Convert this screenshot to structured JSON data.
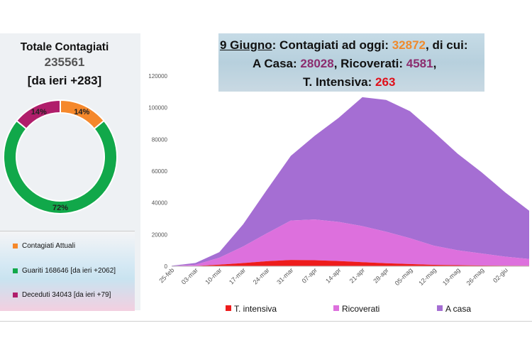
{
  "summary": {
    "title": "Totale Contagiati",
    "total": "235561",
    "delta": "[da ieri +283]"
  },
  "donut": {
    "slices": [
      {
        "label": "14%",
        "value": 14,
        "color": "#f5882b"
      },
      {
        "label": "72%",
        "value": 72,
        "color": "#11a84a"
      },
      {
        "label": "14%",
        "value": 14,
        "color": "#b01e6b"
      }
    ]
  },
  "donut_legend": [
    {
      "label": "Contagiati Attuali",
      "color": "#f5882b"
    },
    {
      "label": "Guariti 168646 [da ieri +2062]",
      "color": "#11a84a"
    },
    {
      "label": "Deceduti 34043 [da ieri +79]",
      "color": "#b01e6b"
    }
  ],
  "header": {
    "date": "9 Giugno",
    "line1_text": ": Contagiati ad oggi: ",
    "line1_value": "32872",
    "line1_suffix": ", di cui:",
    "line2_a": "A Casa: ",
    "line2_a_value": "28028",
    "line2_b": ", Ricoverati: ",
    "line2_b_value": "4581",
    "line2_suffix": ",",
    "line3_a": "T. Intensiva: ",
    "line3_value": "263"
  },
  "chart_data": {
    "type": "area",
    "stacked": true,
    "x_ticks": [
      "25-feb",
      "03-mar",
      "10-mar",
      "17-mar",
      "24-mar",
      "31-mar",
      "07-apr",
      "14-apr",
      "21-apr",
      "28-apr",
      "05-mag",
      "12-mag",
      "19-mag",
      "26-mag",
      "02-giu"
    ],
    "y_ticks": [
      "0",
      "20000",
      "40000",
      "60000",
      "80000",
      "100000",
      "120000"
    ],
    "ylim": [
      0,
      120000
    ],
    "grid": false,
    "legend_position": "bottom",
    "series": [
      {
        "name": "T. intensiva",
        "color": "#ee1c1c",
        "values": [
          30,
          170,
          1000,
          2000,
          3200,
          4000,
          3800,
          3300,
          2600,
          1900,
          1400,
          900,
          650,
          450,
          330,
          265
        ]
      },
      {
        "name": "Ricoverati",
        "color": "#dd70dd",
        "values": [
          100,
          800,
          4400,
          10500,
          17600,
          24800,
          25700,
          24700,
          22700,
          19900,
          16300,
          12100,
          9400,
          7600,
          5700,
          4300
        ]
      },
      {
        "name": "A casa",
        "color": "#a56ed3",
        "values": [
          200,
          1100,
          3500,
          14000,
          27500,
          40800,
          52800,
          65500,
          81300,
          83100,
          80100,
          71700,
          60900,
          51300,
          40500,
          30500
        ]
      }
    ]
  }
}
